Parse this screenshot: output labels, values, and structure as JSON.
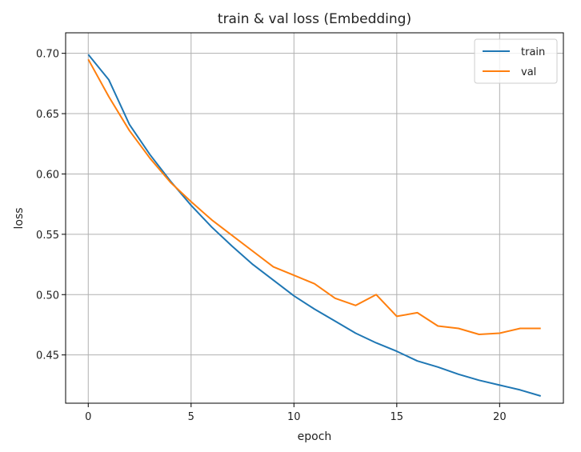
{
  "chart_data": {
    "type": "line",
    "title": "train & val loss (Embedding)",
    "xlabel": "epoch",
    "ylabel": "loss",
    "xlim": [
      -1.1,
      23.1
    ],
    "ylim": [
      0.41,
      0.717
    ],
    "xticks": [
      0,
      5,
      10,
      15,
      20
    ],
    "yticks": [
      0.45,
      0.5,
      0.55,
      0.6,
      0.65,
      0.7
    ],
    "ytick_labels": [
      "0.45",
      "0.50",
      "0.55",
      "0.60",
      "0.65",
      "0.70"
    ],
    "xtick_labels": [
      "0",
      "5",
      "10",
      "15",
      "20"
    ],
    "grid": true,
    "legend": "top-right",
    "x": [
      0,
      1,
      2,
      3,
      4,
      5,
      6,
      7,
      8,
      9,
      10,
      11,
      12,
      13,
      14,
      15,
      16,
      17,
      18,
      19,
      20,
      21,
      22
    ],
    "series": [
      {
        "name": "train",
        "color": "#1f77b4",
        "values": [
          0.699,
          0.678,
          0.641,
          0.616,
          0.594,
          0.574,
          0.556,
          0.54,
          0.525,
          0.512,
          0.499,
          0.488,
          0.478,
          0.468,
          0.46,
          0.453,
          0.445,
          0.44,
          0.434,
          0.429,
          0.425,
          0.421,
          0.416
        ]
      },
      {
        "name": "val",
        "color": "#ff7f0e",
        "values": [
          0.695,
          0.664,
          0.636,
          0.613,
          0.593,
          0.577,
          0.562,
          0.549,
          0.536,
          0.523,
          0.516,
          0.509,
          0.497,
          0.491,
          0.5,
          0.482,
          0.485,
          0.474,
          0.472,
          0.467,
          0.468,
          0.472,
          0.472
        ]
      }
    ]
  }
}
